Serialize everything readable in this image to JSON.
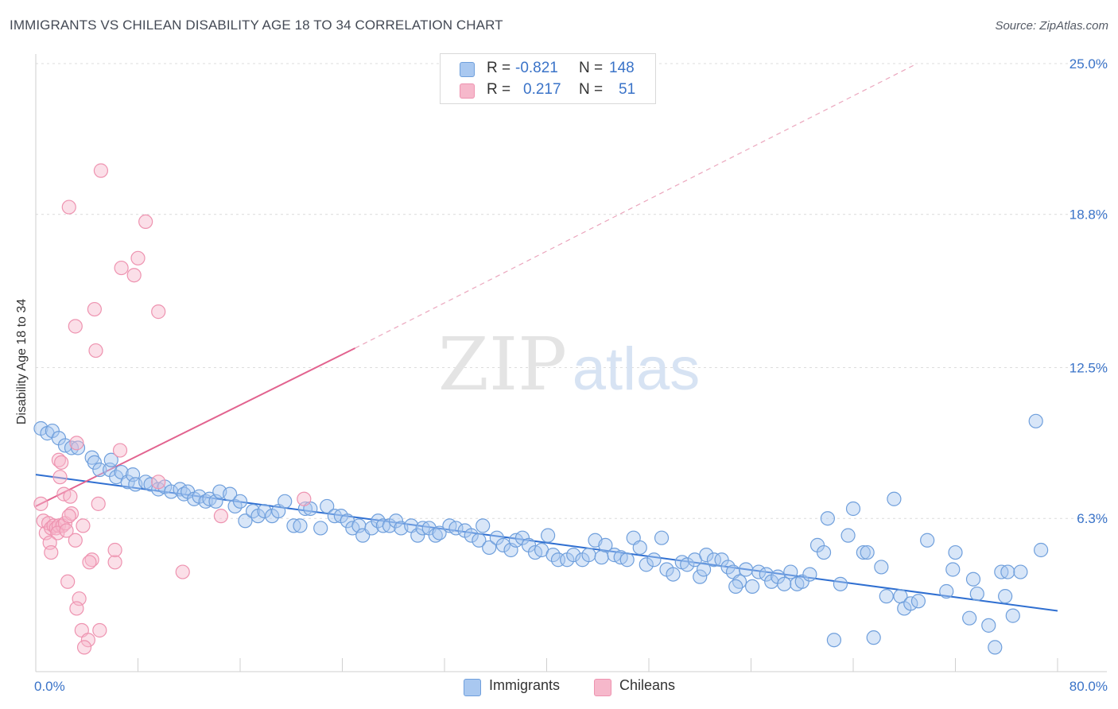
{
  "header": {
    "title": "IMMIGRANTS VS CHILEAN DISABILITY AGE 18 TO 34 CORRELATION CHART",
    "source": "Source: ZipAtlas.com"
  },
  "watermark": {
    "zip": "ZIP",
    "atlas": "atlas"
  },
  "legend": {
    "rows": [
      {
        "r_label": "R =",
        "r_value": "-0.821",
        "n_label": "N =",
        "n_value": "148"
      },
      {
        "r_label": "R =",
        "r_value": "0.217",
        "n_label": "N =",
        "n_value": "51"
      }
    ]
  },
  "bottom_legend": {
    "immigrants": "Immigrants",
    "chileans": "Chileans"
  },
  "colors": {
    "blue_fill": "#a9c8f0",
    "blue_stroke": "#6f9fdc",
    "blue_line": "#2f6fd1",
    "pink_fill": "#f6b8cb",
    "pink_stroke": "#ee93b0",
    "pink_line": "#e2638f",
    "grid": "#dcdcdc",
    "tick_text": "#3a73c8"
  },
  "chart_data": {
    "type": "scatter",
    "title": "IMMIGRANTS VS CHILEAN DISABILITY AGE 18 TO 34 CORRELATION CHART",
    "xlabel": "",
    "ylabel": "Disability Age 18 to 34",
    "xlim": [
      0,
      80
    ],
    "ylim": [
      0,
      25
    ],
    "x_tick_labels": [
      "0.0%",
      "80.0%"
    ],
    "y_ticks": [
      6.3,
      12.5,
      18.8,
      25.0
    ],
    "y_tick_labels": [
      "6.3%",
      "12.5%",
      "18.8%",
      "25.0%"
    ],
    "series": [
      {
        "name": "Immigrants",
        "r": -0.821,
        "n": 148,
        "trend": {
          "x0": 0,
          "y0": 8.1,
          "x1": 80,
          "y1": 2.5
        },
        "points": [
          [
            0.4,
            10.0
          ],
          [
            0.9,
            9.8
          ],
          [
            1.3,
            9.9
          ],
          [
            1.8,
            9.6
          ],
          [
            2.3,
            9.3
          ],
          [
            2.8,
            9.2
          ],
          [
            3.3,
            9.2
          ],
          [
            4.4,
            8.8
          ],
          [
            4.6,
            8.6
          ],
          [
            5.0,
            8.3
          ],
          [
            5.8,
            8.3
          ],
          [
            5.9,
            8.7
          ],
          [
            6.3,
            8.0
          ],
          [
            6.7,
            8.2
          ],
          [
            7.2,
            7.8
          ],
          [
            7.6,
            8.1
          ],
          [
            7.8,
            7.7
          ],
          [
            8.6,
            7.8
          ],
          [
            9.0,
            7.7
          ],
          [
            9.6,
            7.5
          ],
          [
            10.1,
            7.6
          ],
          [
            10.6,
            7.4
          ],
          [
            11.3,
            7.5
          ],
          [
            11.6,
            7.3
          ],
          [
            11.9,
            7.4
          ],
          [
            12.4,
            7.1
          ],
          [
            12.8,
            7.2
          ],
          [
            13.3,
            7.0
          ],
          [
            13.6,
            7.1
          ],
          [
            14.1,
            7.0
          ],
          [
            14.4,
            7.4
          ],
          [
            15.2,
            7.3
          ],
          [
            15.6,
            6.8
          ],
          [
            16.0,
            7.0
          ],
          [
            16.4,
            6.2
          ],
          [
            17.0,
            6.6
          ],
          [
            17.4,
            6.4
          ],
          [
            17.9,
            6.6
          ],
          [
            18.5,
            6.4
          ],
          [
            19.0,
            6.6
          ],
          [
            19.5,
            7.0
          ],
          [
            20.2,
            6.0
          ],
          [
            20.7,
            6.0
          ],
          [
            21.1,
            6.7
          ],
          [
            21.5,
            6.7
          ],
          [
            22.3,
            5.9
          ],
          [
            22.8,
            6.8
          ],
          [
            23.4,
            6.4
          ],
          [
            23.9,
            6.4
          ],
          [
            24.4,
            6.2
          ],
          [
            24.8,
            5.9
          ],
          [
            25.3,
            6.0
          ],
          [
            25.6,
            5.6
          ],
          [
            26.3,
            5.9
          ],
          [
            26.8,
            6.2
          ],
          [
            27.2,
            6.0
          ],
          [
            27.7,
            6.0
          ],
          [
            28.2,
            6.2
          ],
          [
            28.6,
            5.9
          ],
          [
            29.4,
            6.0
          ],
          [
            29.9,
            5.6
          ],
          [
            30.3,
            5.9
          ],
          [
            30.8,
            5.9
          ],
          [
            31.3,
            5.6
          ],
          [
            31.6,
            5.7
          ],
          [
            32.4,
            6.0
          ],
          [
            32.9,
            5.9
          ],
          [
            33.6,
            5.8
          ],
          [
            34.1,
            5.6
          ],
          [
            34.7,
            5.4
          ],
          [
            35.0,
            6.0
          ],
          [
            35.5,
            5.1
          ],
          [
            36.1,
            5.5
          ],
          [
            36.6,
            5.2
          ],
          [
            37.2,
            5.0
          ],
          [
            37.6,
            5.4
          ],
          [
            38.1,
            5.5
          ],
          [
            38.6,
            5.2
          ],
          [
            39.1,
            4.9
          ],
          [
            39.6,
            5.0
          ],
          [
            40.1,
            5.6
          ],
          [
            40.5,
            4.8
          ],
          [
            40.9,
            4.6
          ],
          [
            41.6,
            4.6
          ],
          [
            42.1,
            4.8
          ],
          [
            42.8,
            4.6
          ],
          [
            43.3,
            4.8
          ],
          [
            43.8,
            5.4
          ],
          [
            44.3,
            4.7
          ],
          [
            44.6,
            5.2
          ],
          [
            45.3,
            4.8
          ],
          [
            45.8,
            4.7
          ],
          [
            46.3,
            4.6
          ],
          [
            46.8,
            5.5
          ],
          [
            47.3,
            5.1
          ],
          [
            47.8,
            4.4
          ],
          [
            48.4,
            4.6
          ],
          [
            49.0,
            5.5
          ],
          [
            49.4,
            4.2
          ],
          [
            49.9,
            4.0
          ],
          [
            50.6,
            4.5
          ],
          [
            51.0,
            4.4
          ],
          [
            51.6,
            4.6
          ],
          [
            52.0,
            3.9
          ],
          [
            52.5,
            4.8
          ],
          [
            53.1,
            4.6
          ],
          [
            53.7,
            4.6
          ],
          [
            54.2,
            4.3
          ],
          [
            54.6,
            4.1
          ],
          [
            55.1,
            3.7
          ],
          [
            55.6,
            4.2
          ],
          [
            56.1,
            3.5
          ],
          [
            56.6,
            4.1
          ],
          [
            57.2,
            4.0
          ],
          [
            57.6,
            3.7
          ],
          [
            58.1,
            3.9
          ],
          [
            58.6,
            3.6
          ],
          [
            59.1,
            4.1
          ],
          [
            59.6,
            3.6
          ],
          [
            60.0,
            3.7
          ],
          [
            60.6,
            4.0
          ],
          [
            61.2,
            5.2
          ],
          [
            61.7,
            4.9
          ],
          [
            62.0,
            6.3
          ],
          [
            62.5,
            1.3
          ],
          [
            63.0,
            3.6
          ],
          [
            63.6,
            5.6
          ],
          [
            64.0,
            6.7
          ],
          [
            64.8,
            4.9
          ],
          [
            65.1,
            4.9
          ],
          [
            65.6,
            1.4
          ],
          [
            66.2,
            4.3
          ],
          [
            66.6,
            3.1
          ],
          [
            67.2,
            7.1
          ],
          [
            67.7,
            3.1
          ],
          [
            68.0,
            2.6
          ],
          [
            68.5,
            2.8
          ],
          [
            69.1,
            2.9
          ],
          [
            71.3,
            3.3
          ],
          [
            71.8,
            4.2
          ],
          [
            72.0,
            4.9
          ],
          [
            73.1,
            2.2
          ],
          [
            73.4,
            3.8
          ],
          [
            73.7,
            3.2
          ],
          [
            74.6,
            1.9
          ],
          [
            75.1,
            1.0
          ],
          [
            75.6,
            4.1
          ],
          [
            75.9,
            3.1
          ],
          [
            76.1,
            4.1
          ],
          [
            76.5,
            2.3
          ],
          [
            77.1,
            4.1
          ],
          [
            78.3,
            10.3
          ],
          [
            78.7,
            5.0
          ],
          [
            69.8,
            5.4
          ],
          [
            52.3,
            4.2
          ],
          [
            54.8,
            3.5
          ]
        ]
      },
      {
        "name": "Chileans",
        "r": 0.217,
        "n": 51,
        "trend": {
          "x0": 0,
          "y0": 6.8,
          "x1": 25,
          "y1": 13.3
        },
        "trend_extended": {
          "x0": 25,
          "y0": 13.3,
          "x1": 69,
          "y1": 25.0
        },
        "points": [
          [
            5.1,
            20.6
          ],
          [
            2.6,
            19.1
          ],
          [
            8.6,
            18.5
          ],
          [
            8.0,
            17.0
          ],
          [
            6.7,
            16.6
          ],
          [
            7.7,
            16.3
          ],
          [
            4.6,
            14.9
          ],
          [
            9.6,
            14.8
          ],
          [
            3.1,
            14.2
          ],
          [
            4.7,
            13.2
          ],
          [
            0.4,
            6.9
          ],
          [
            0.6,
            6.2
          ],
          [
            0.8,
            5.7
          ],
          [
            1.0,
            6.1
          ],
          [
            1.2,
            5.9
          ],
          [
            1.4,
            6.0
          ],
          [
            1.6,
            5.9
          ],
          [
            1.8,
            6.0
          ],
          [
            2.1,
            6.0
          ],
          [
            1.7,
            5.7
          ],
          [
            2.3,
            6.1
          ],
          [
            2.8,
            6.5
          ],
          [
            3.2,
            9.4
          ],
          [
            1.8,
            8.7
          ],
          [
            2.0,
            8.6
          ],
          [
            1.9,
            8.0
          ],
          [
            2.2,
            7.3
          ],
          [
            2.7,
            7.2
          ],
          [
            6.6,
            9.1
          ],
          [
            2.6,
            6.4
          ],
          [
            3.7,
            6.0
          ],
          [
            3.1,
            5.4
          ],
          [
            4.9,
            6.9
          ],
          [
            2.4,
            5.8
          ],
          [
            1.1,
            5.3
          ],
          [
            1.2,
            4.9
          ],
          [
            4.4,
            4.6
          ],
          [
            4.2,
            4.5
          ],
          [
            6.2,
            4.5
          ],
          [
            6.2,
            5.0
          ],
          [
            11.5,
            4.1
          ],
          [
            9.6,
            7.8
          ],
          [
            2.5,
            3.7
          ],
          [
            3.4,
            3.0
          ],
          [
            3.2,
            2.6
          ],
          [
            3.6,
            1.7
          ],
          [
            4.1,
            1.3
          ],
          [
            5.0,
            1.7
          ],
          [
            3.8,
            1.0
          ],
          [
            14.5,
            6.4
          ],
          [
            21.0,
            7.1
          ]
        ]
      }
    ]
  }
}
